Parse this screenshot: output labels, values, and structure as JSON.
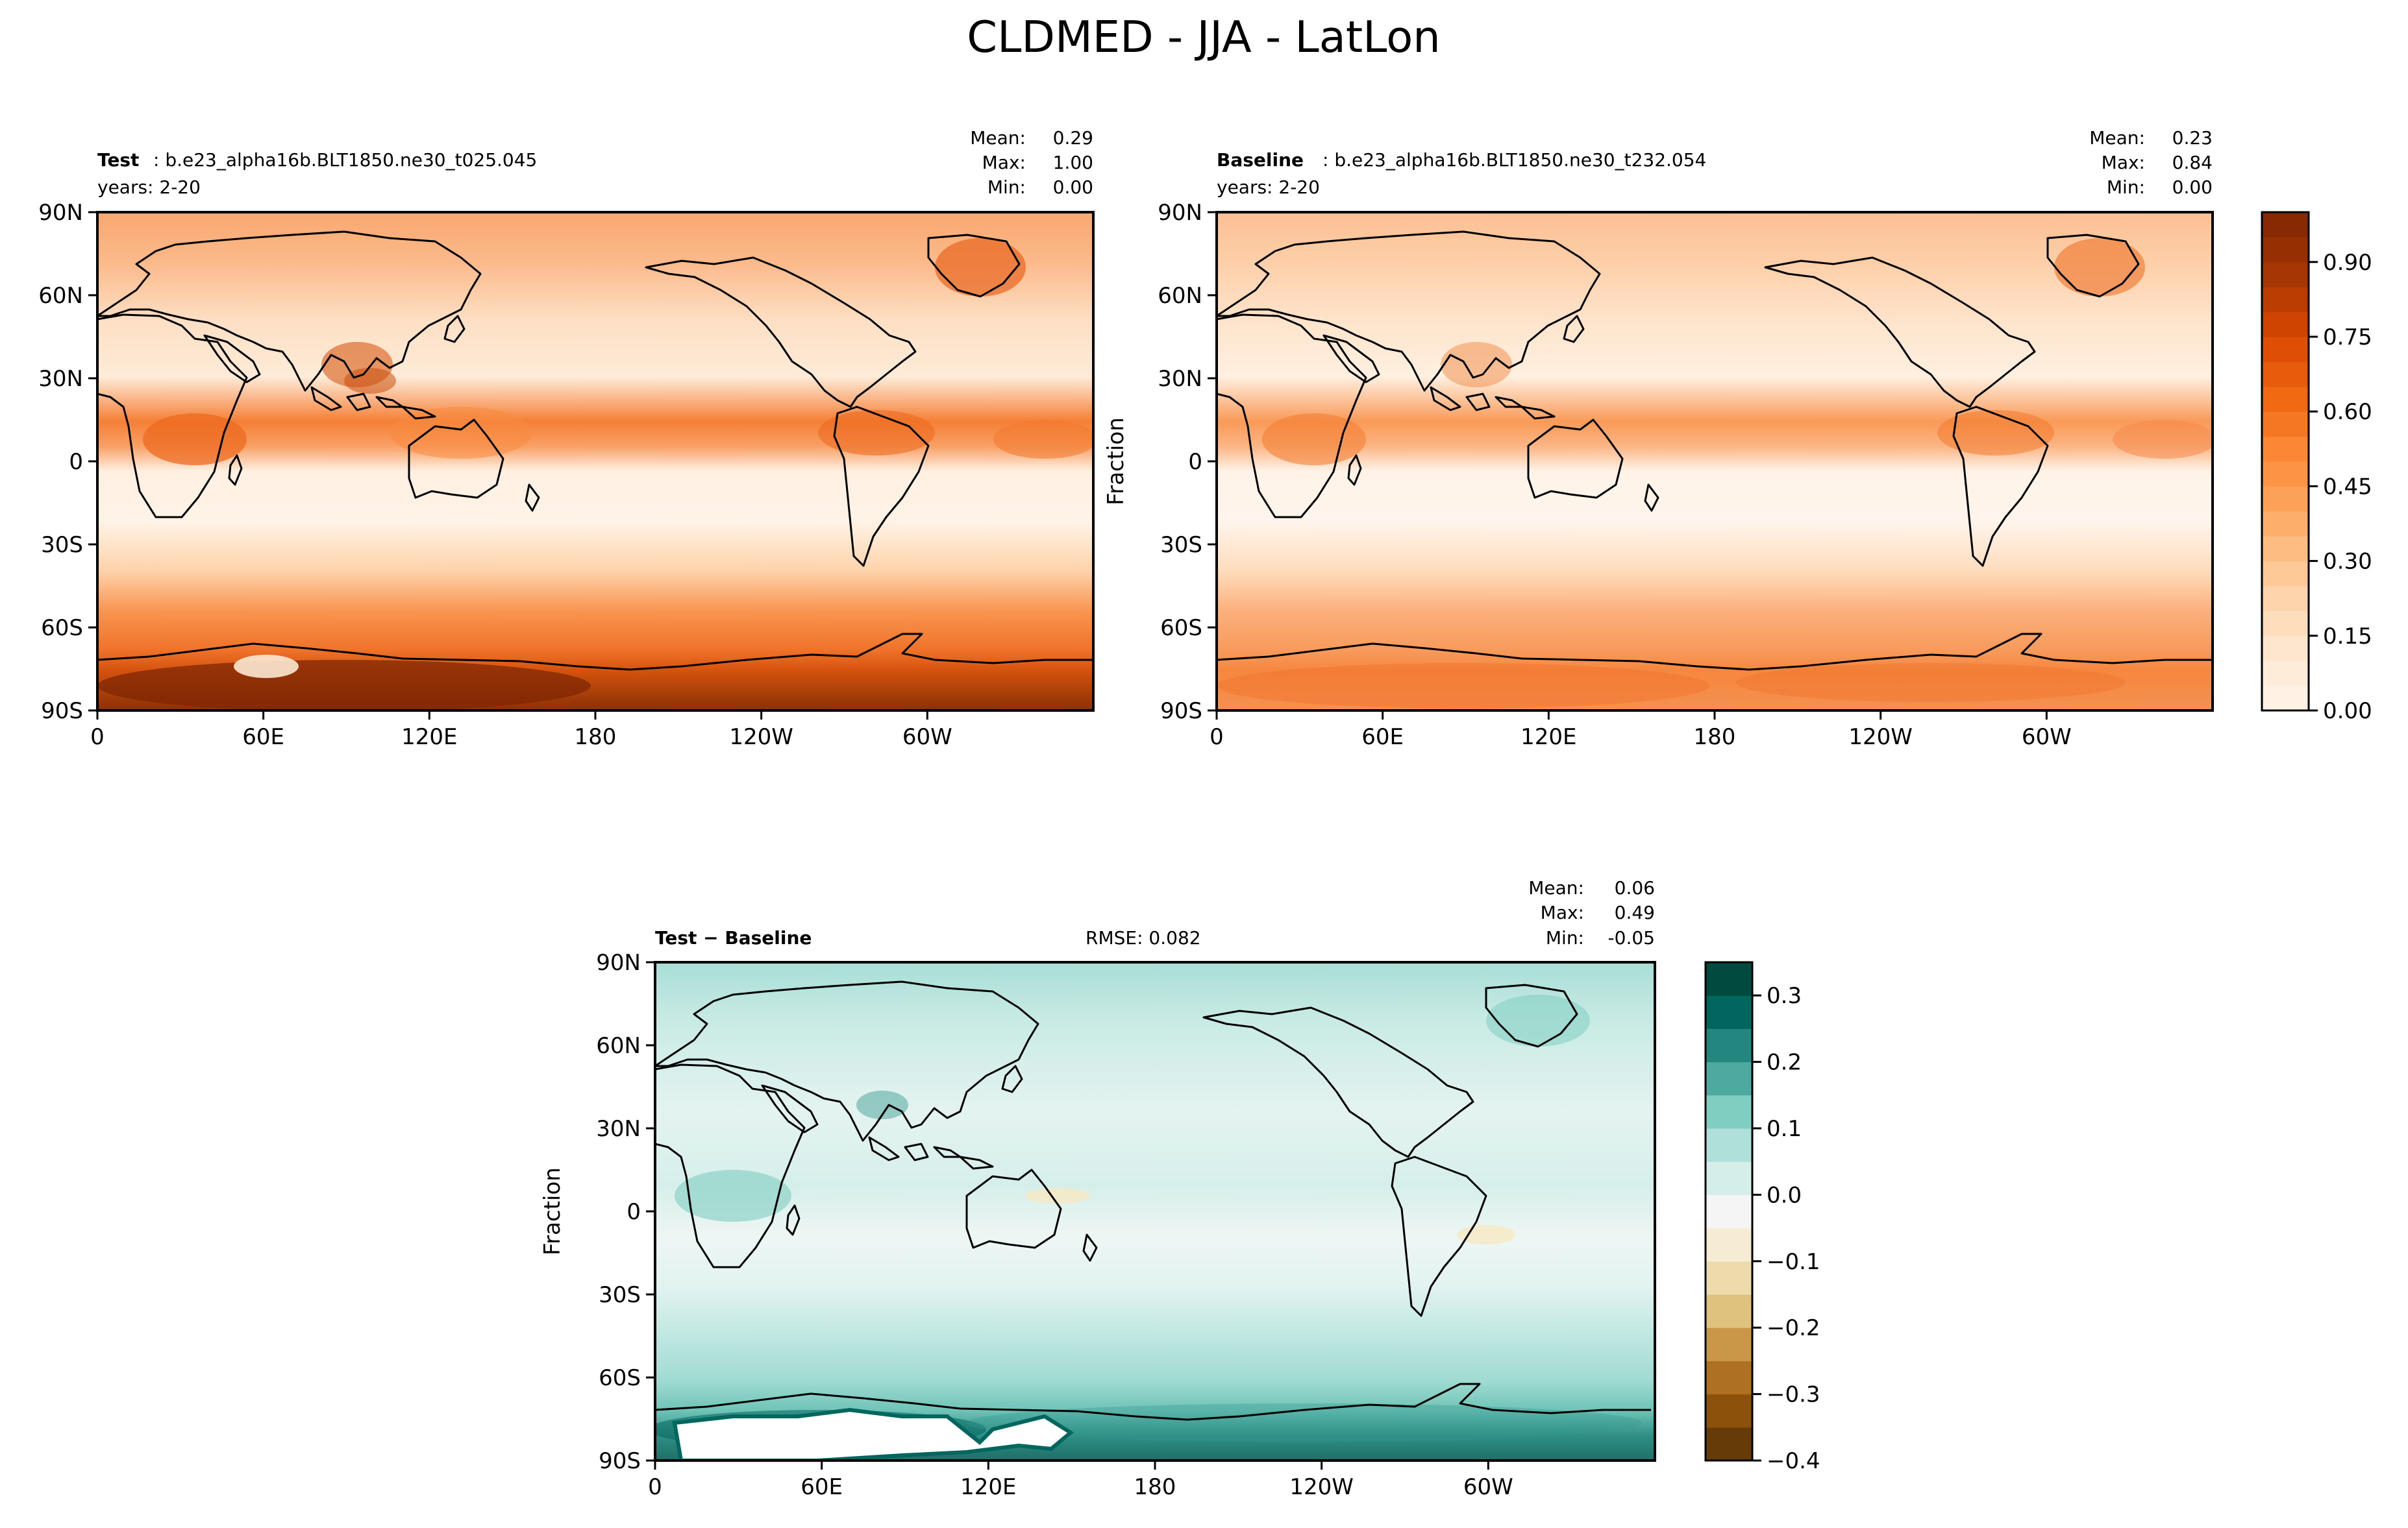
{
  "figure": {
    "title": "CLDMED - JJA - LatLon"
  },
  "chart_data": [
    {
      "type": "heatmap",
      "panel": "test",
      "label_bold": "Test",
      "label_text": ": b.e23_alpha16b.BLT1850.ne30_t025.045",
      "years": "years: 2-20",
      "stats": {
        "mean": "0.29",
        "max": "1.00",
        "min": "0.00"
      },
      "stats_labels": {
        "mean": "Mean:",
        "max": "Max:",
        "min": "Min:"
      },
      "ylabel": "",
      "xticks": [
        "0",
        "60E",
        "120E",
        "180",
        "120W",
        "60W"
      ],
      "yticks": [
        "90N",
        "60N",
        "30N",
        "0",
        "30S",
        "60S",
        "90S"
      ],
      "xlim": [
        0,
        360
      ],
      "ylim": [
        -90,
        90
      ],
      "grid": false
    },
    {
      "type": "heatmap",
      "panel": "baseline",
      "label_bold": "Baseline",
      "label_text": ": b.e23_alpha16b.BLT1850.ne30_t232.054",
      "years": "years: 2-20",
      "stats": {
        "mean": "0.23",
        "max": "0.84",
        "min": "0.00"
      },
      "stats_labels": {
        "mean": "Mean:",
        "max": "Max:",
        "min": "Min:"
      },
      "ylabel": "Fraction",
      "xticks": [
        "0",
        "60E",
        "120E",
        "180",
        "120W",
        "60W"
      ],
      "yticks": [
        "90N",
        "60N",
        "30N",
        "0",
        "30S",
        "60S",
        "90S"
      ],
      "xlim": [
        0,
        360
      ],
      "ylim": [
        -90,
        90
      ],
      "grid": false,
      "colorbar": {
        "ticks": [
          "0.00",
          "0.15",
          "0.30",
          "0.45",
          "0.60",
          "0.75",
          "0.90"
        ],
        "range": [
          0,
          1
        ],
        "colors": [
          "#fff5eb",
          "#fee6ce",
          "#fdd0a2",
          "#fdae6b",
          "#fd8d3c",
          "#f16913",
          "#d94801",
          "#a63603",
          "#7f2704"
        ]
      }
    },
    {
      "type": "heatmap",
      "panel": "difference",
      "label_bold": "Test − Baseline",
      "rmse": "RMSE: 0.082",
      "stats": {
        "mean": "0.06",
        "max": "0.49",
        "min": "-0.05"
      },
      "stats_labels": {
        "mean": "Mean:",
        "max": "Max:",
        "min": "Min:"
      },
      "ylabel": "Fraction",
      "xticks": [
        "0",
        "60E",
        "120E",
        "180",
        "120W",
        "60W"
      ],
      "yticks": [
        "90N",
        "60N",
        "30N",
        "0",
        "30S",
        "60S",
        "90S"
      ],
      "xlim": [
        0,
        360
      ],
      "ylim": [
        -90,
        90
      ],
      "grid": false,
      "colorbar": {
        "ticks": [
          "0.3",
          "0.2",
          "0.1",
          "0.0",
          "−0.1",
          "−0.2",
          "−0.3",
          "−0.4"
        ],
        "range": [
          -0.4,
          0.35
        ],
        "colors": [
          "#543005",
          "#8c510a",
          "#bf812d",
          "#dfc27d",
          "#f6e8c3",
          "#f5f5f5",
          "#c7eae5",
          "#80cdc1",
          "#35978f",
          "#01665e",
          "#003c30"
        ]
      }
    }
  ]
}
